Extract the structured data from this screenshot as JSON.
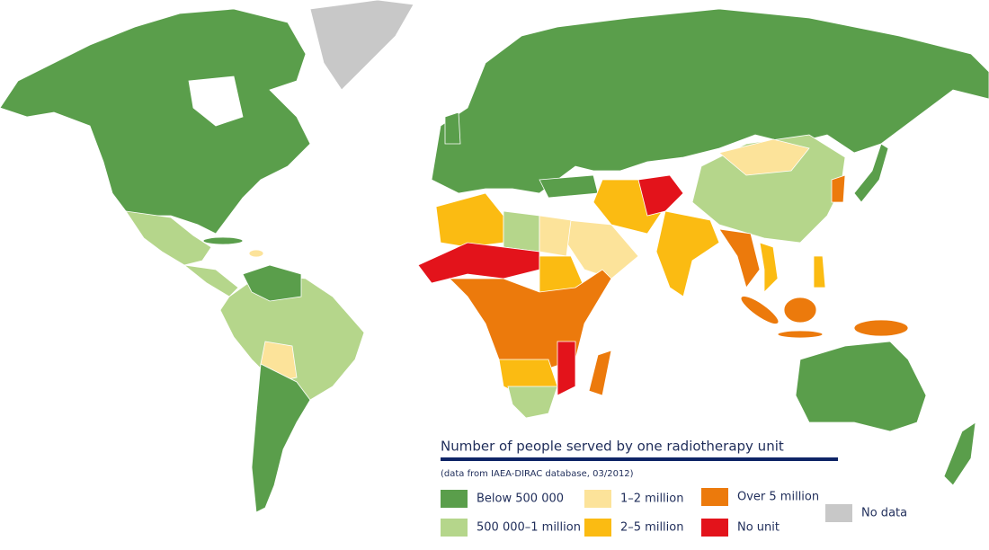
{
  "legend": {
    "title": "Number of people served by one radiotherapy unit",
    "note": "(data from IAEA-DIRAC database, 03/2012)",
    "items": [
      {
        "label": "Below 500 000",
        "color": "#5a9e4b"
      },
      {
        "label": "500 000–1 million",
        "color": "#b5d68b"
      },
      {
        "label": "1–2 million",
        "color": "#fce39a"
      },
      {
        "label": "2–5 million",
        "color": "#fbbb12"
      },
      {
        "label": "Over 5 million",
        "color": "#ec7a0c"
      },
      {
        "label": "No unit",
        "color": "#e3131b"
      },
      {
        "label": "No data",
        "color": "#c8c8c8"
      }
    ]
  }
}
